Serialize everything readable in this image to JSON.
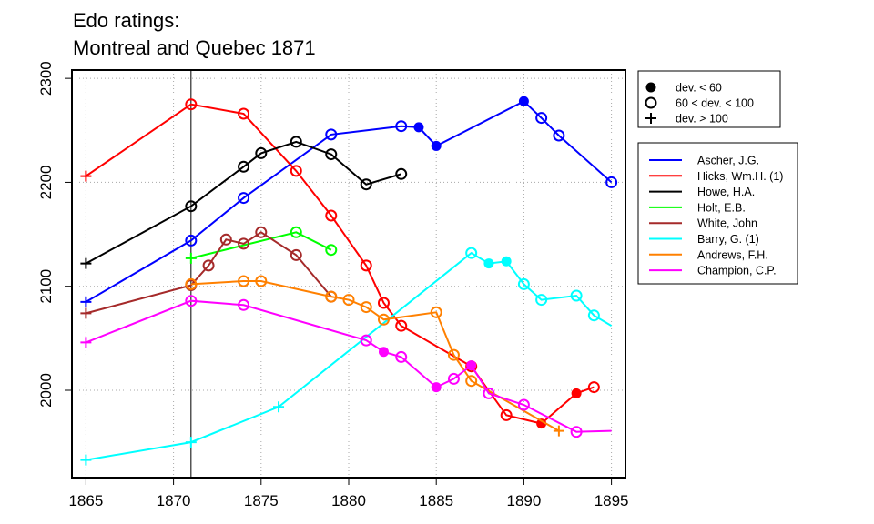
{
  "chart_data": {
    "type": "line",
    "title": [
      "Edo ratings:",
      "Montreal and Quebec 1871"
    ],
    "xlabel": "",
    "ylabel": "",
    "xlim": [
      1864.2,
      1895.8
    ],
    "ylim": [
      1916,
      2308
    ],
    "xticks": [
      1865,
      1870,
      1875,
      1880,
      1885,
      1890,
      1895
    ],
    "yticks": [
      2000,
      2100,
      2200,
      2300
    ],
    "grid": true,
    "vline": 1871,
    "marker_legend": [
      {
        "shape": "dot",
        "label": "dev. < 60"
      },
      {
        "shape": "ring",
        "label": "60 < dev. < 100"
      },
      {
        "shape": "plus",
        "label": "dev. > 100"
      }
    ],
    "series": [
      {
        "name": "Ascher, J.G.",
        "color": "#0000ff",
        "points": [
          [
            1865,
            2085,
            "plus"
          ],
          [
            1871,
            2144,
            "ring"
          ],
          [
            1874,
            2185,
            "ring"
          ],
          [
            1879,
            2246,
            "ring"
          ],
          [
            1883,
            2254,
            "ring"
          ],
          [
            1884,
            2253,
            "dot"
          ],
          [
            1885,
            2235,
            "dot"
          ],
          [
            1890,
            2278,
            "dot"
          ],
          [
            1891,
            2262,
            "ring"
          ],
          [
            1892,
            2245,
            "ring"
          ],
          [
            1895,
            2200,
            "ring"
          ]
        ]
      },
      {
        "name": "Hicks, Wm.H. (1)",
        "color": "#ff0000",
        "points": [
          [
            1865,
            2206,
            "plus"
          ],
          [
            1871,
            2275,
            "ring"
          ],
          [
            1874,
            2266,
            "ring"
          ],
          [
            1877,
            2211,
            "ring"
          ],
          [
            1879,
            2168,
            "ring"
          ],
          [
            1881,
            2120,
            "ring"
          ],
          [
            1882,
            2084,
            "ring"
          ],
          [
            1883,
            2062,
            "ring"
          ],
          [
            1887,
            2023,
            "ring"
          ],
          [
            1889,
            1976,
            "ring"
          ],
          [
            1891,
            1968,
            "dot"
          ],
          [
            1893,
            1997,
            "dot"
          ],
          [
            1894,
            2003,
            "ring"
          ]
        ]
      },
      {
        "name": "Howe, H.A.",
        "color": "#000000",
        "points": [
          [
            1865,
            2122,
            "plus"
          ],
          [
            1871,
            2177,
            "ring"
          ],
          [
            1874,
            2215,
            "ring"
          ],
          [
            1875,
            2228,
            "ring"
          ],
          [
            1877,
            2239,
            "ring"
          ],
          [
            1879,
            2227,
            "ring"
          ],
          [
            1881,
            2198,
            "ring"
          ],
          [
            1883,
            2208,
            "ring"
          ]
        ]
      },
      {
        "name": "Holt, E.B.",
        "color": "#00ff00",
        "points": [
          [
            1871,
            2127,
            "plus"
          ],
          [
            1877,
            2152,
            "ring"
          ],
          [
            1879,
            2135,
            "ring"
          ]
        ]
      },
      {
        "name": "White, John",
        "color": "#a52a2a",
        "points": [
          [
            1865,
            2074,
            "plus"
          ],
          [
            1871,
            2101,
            "ring"
          ],
          [
            1872,
            2120,
            "ring"
          ],
          [
            1873,
            2145,
            "ring"
          ],
          [
            1874,
            2141,
            "ring"
          ],
          [
            1875,
            2152,
            "ring"
          ],
          [
            1877,
            2130,
            "ring"
          ],
          [
            1879,
            2090,
            "ring"
          ]
        ]
      },
      {
        "name": "Barry, G. (1)",
        "color": "#00ffff",
        "points": [
          [
            1865,
            1933,
            "plus"
          ],
          [
            1871,
            1950,
            "plus"
          ],
          [
            1876,
            1984,
            "plus"
          ],
          [
            1887,
            2132,
            "ring"
          ],
          [
            1888,
            2122,
            "dot"
          ],
          [
            1889,
            2124,
            "dot"
          ],
          [
            1890,
            2102,
            "ring"
          ],
          [
            1891,
            2087,
            "ring"
          ],
          [
            1893,
            2091,
            "ring"
          ],
          [
            1894,
            2072,
            "ring"
          ],
          [
            1895,
            2062,
            null
          ]
        ]
      },
      {
        "name": "Andrews, F.H.",
        "color": "#ff8000",
        "points": [
          [
            1871,
            2102,
            "ring"
          ],
          [
            1874,
            2105,
            "ring"
          ],
          [
            1875,
            2105,
            "ring"
          ],
          [
            1879,
            2090,
            "ring"
          ],
          [
            1880,
            2087,
            "ring"
          ],
          [
            1881,
            2080,
            "ring"
          ],
          [
            1882,
            2068,
            "ring"
          ],
          [
            1885,
            2075,
            "ring"
          ],
          [
            1886,
            2034,
            "ring"
          ],
          [
            1887,
            2009,
            "ring"
          ],
          [
            1892,
            1961,
            "plus"
          ]
        ]
      },
      {
        "name": "Champion, C.P.",
        "color": "#ff00ff",
        "points": [
          [
            1865,
            2046,
            "plus"
          ],
          [
            1871,
            2086,
            "ring"
          ],
          [
            1874,
            2082,
            "ring"
          ],
          [
            1881,
            2048,
            "ring"
          ],
          [
            1882,
            2037,
            "dot"
          ],
          [
            1883,
            2032,
            "ring"
          ],
          [
            1885,
            2003,
            "dot"
          ],
          [
            1886,
            2011,
            "ring"
          ],
          [
            1887,
            2024,
            "dot"
          ],
          [
            1888,
            1997,
            "ring"
          ],
          [
            1890,
            1986,
            "ring"
          ],
          [
            1893,
            1960,
            "ring"
          ],
          [
            1895,
            1961,
            null
          ]
        ]
      }
    ]
  }
}
